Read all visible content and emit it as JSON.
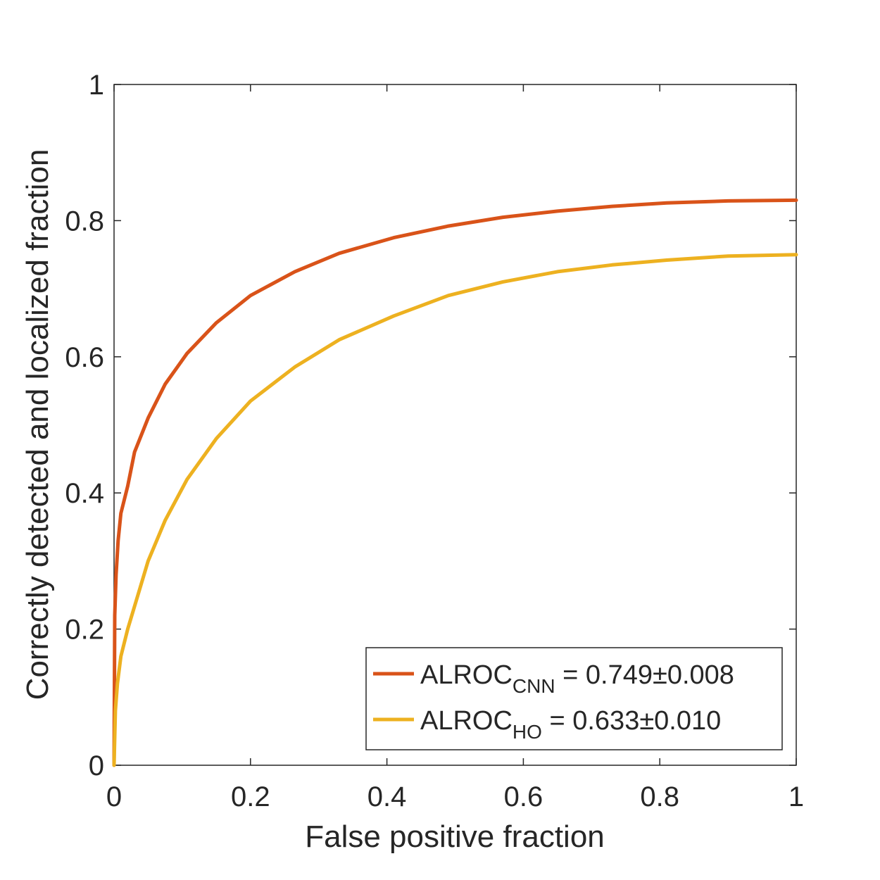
{
  "chart_data": {
    "type": "line",
    "title": "",
    "xlabel": "False positive fraction",
    "ylabel": "Correctly detected and localized fraction",
    "xlim": [
      0,
      1
    ],
    "ylim": [
      0,
      1
    ],
    "xticks": [
      0,
      0.2,
      0.4,
      0.6,
      0.8,
      1
    ],
    "yticks": [
      0,
      0.2,
      0.4,
      0.6,
      0.8,
      1
    ],
    "xtick_labels": [
      "0",
      "0.2",
      "0.4",
      "0.6",
      "0.8",
      "1"
    ],
    "ytick_labels": [
      "0",
      "0.2",
      "0.4",
      "0.6",
      "0.8",
      "1"
    ],
    "grid": false,
    "legend_position": "bottom-right",
    "series": [
      {
        "name": "ALROC_CNN = 0.749±0.008",
        "legend_main": "ALROC",
        "legend_sub": "CNN",
        "legend_rest": " = 0.749±0.008",
        "color": "#D95319",
        "x": [
          0,
          0.001,
          0.003,
          0.006,
          0.01,
          0.02,
          0.03,
          0.05,
          0.075,
          0.107,
          0.15,
          0.2,
          0.265,
          0.33,
          0.41,
          0.49,
          0.57,
          0.65,
          0.73,
          0.81,
          0.9,
          1.0
        ],
        "y": [
          0,
          0.22,
          0.28,
          0.33,
          0.37,
          0.41,
          0.46,
          0.51,
          0.56,
          0.605,
          0.65,
          0.69,
          0.725,
          0.752,
          0.775,
          0.792,
          0.805,
          0.814,
          0.821,
          0.826,
          0.829,
          0.83
        ]
      },
      {
        "name": "ALROC_HO = 0.633±0.010",
        "legend_main": "ALROC",
        "legend_sub": "HO",
        "legend_rest": " = 0.633±0.010",
        "color": "#EDB120",
        "x": [
          0,
          0.002,
          0.005,
          0.01,
          0.02,
          0.035,
          0.05,
          0.075,
          0.107,
          0.15,
          0.2,
          0.265,
          0.33,
          0.41,
          0.49,
          0.57,
          0.65,
          0.73,
          0.81,
          0.9,
          1.0
        ],
        "y": [
          0,
          0.08,
          0.12,
          0.16,
          0.2,
          0.25,
          0.3,
          0.36,
          0.42,
          0.48,
          0.535,
          0.585,
          0.625,
          0.66,
          0.69,
          0.71,
          0.725,
          0.735,
          0.742,
          0.748,
          0.75
        ]
      }
    ]
  }
}
